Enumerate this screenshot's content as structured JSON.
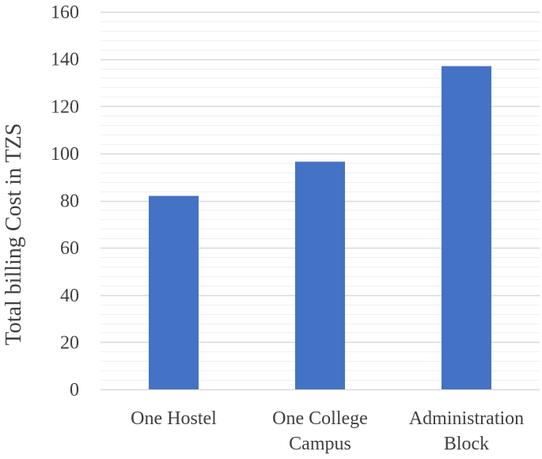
{
  "chart_data": {
    "type": "bar",
    "title": "",
    "xlabel": "",
    "ylabel": "Total billing Cost in TZS",
    "ylim": [
      0,
      160
    ],
    "yticks": [
      0,
      20,
      40,
      60,
      80,
      100,
      120,
      140,
      160
    ],
    "y_minor_step": 4,
    "grid": true,
    "categories": [
      [
        "One Hostel"
      ],
      [
        "One College",
        "Campus"
      ],
      [
        "Administration",
        "Block"
      ]
    ],
    "values": [
      82,
      96.5,
      137
    ],
    "colors": {
      "bar": "#4472C4",
      "major_grid": "#D9D9D9",
      "minor_grid": "#F0F0F0",
      "text": "#404040"
    }
  }
}
